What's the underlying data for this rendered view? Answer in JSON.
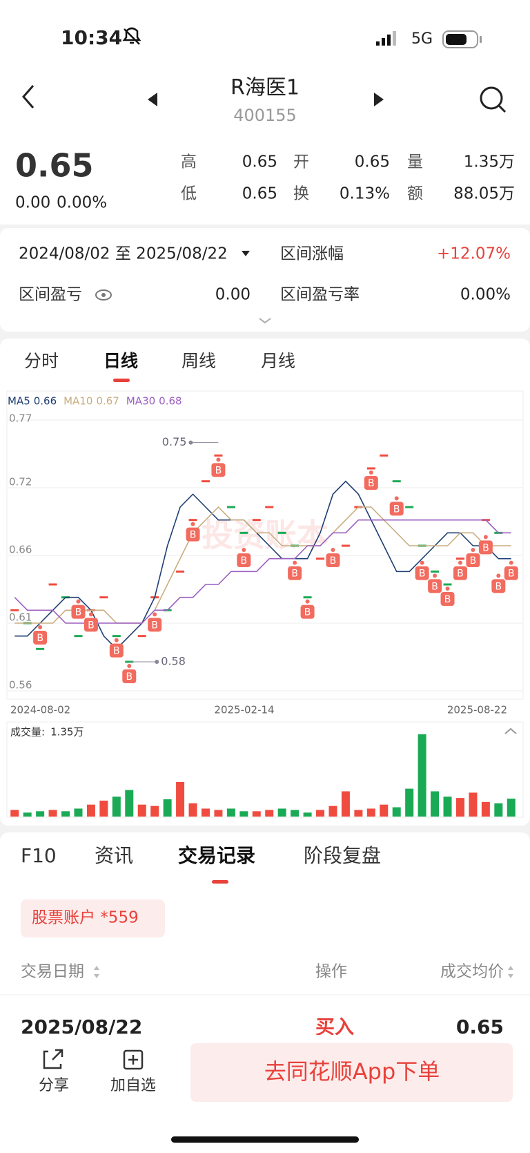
{
  "status": {
    "time": "10:34",
    "network": "5G"
  },
  "header": {
    "name": "R海医1",
    "code": "400155"
  },
  "quote": {
    "price": "0.65",
    "change": "0.00",
    "change_pct": "0.00%",
    "fields": [
      {
        "label": "高",
        "value": "0.65"
      },
      {
        "label": "开",
        "value": "0.65"
      },
      {
        "label": "量",
        "value": "1.35万"
      },
      {
        "label": "低",
        "value": "0.65"
      },
      {
        "label": "换",
        "value": "0.13%"
      },
      {
        "label": "额",
        "value": "88.05万"
      }
    ]
  },
  "range": {
    "period": "2024/08/02 至 2025/08/22",
    "items": [
      {
        "label": "区间涨幅",
        "value": "+12.07%"
      },
      {
        "label": "区间盈亏",
        "value": "0.00"
      },
      {
        "label": "区间盈亏率",
        "value": "0.00%"
      }
    ]
  },
  "period_tabs": [
    "分时",
    "日线",
    "周线",
    "月线"
  ],
  "chart_data": {
    "type": "candlestick",
    "watermark": "投资账本",
    "ylim": [
      0.5575,
      0.7675
    ],
    "yticks": [
      {
        "value": 0.7675,
        "label": "0.77"
      },
      {
        "value": 0.715,
        "label": "0.72"
      },
      {
        "value": 0.6625,
        "label": "0.66"
      },
      {
        "value": 0.61,
        "label": "0.61"
      },
      {
        "value": 0.5575,
        "label": "0.56"
      }
    ],
    "x_labels": [
      "2024-08-02",
      "2025-02-14",
      "2025-08-22"
    ],
    "up_color": "#f04b3f",
    "down_color": "#1aaa55",
    "closes": [
      0.62,
      0.61,
      0.59,
      0.64,
      0.63,
      0.6,
      0.62,
      0.63,
      0.6,
      0.58,
      0.6,
      0.63,
      0.62,
      0.65,
      0.69,
      0.72,
      0.74,
      0.7,
      0.68,
      0.69,
      0.7,
      0.68,
      0.67,
      0.63,
      0.66,
      0.66,
      0.67,
      0.7,
      0.73,
      0.74,
      0.72,
      0.7,
      0.67,
      0.65,
      0.64,
      0.66,
      0.66,
      0.69,
      0.68,
      0.65
    ],
    "buys": [
      null,
      null,
      0.61,
      null,
      null,
      0.63,
      0.62,
      null,
      0.6,
      0.58,
      null,
      0.62,
      null,
      null,
      0.69,
      null,
      0.74,
      null,
      0.67,
      null,
      null,
      null,
      0.66,
      0.63,
      null,
      0.67,
      null,
      null,
      0.73,
      null,
      0.71,
      null,
      0.66,
      0.65,
      0.64,
      0.66,
      0.67,
      0.68,
      0.65,
      0.66
    ],
    "high_low": {
      "high": 0.75,
      "low": 0.58
    },
    "series": [
      {
        "name": "MA5",
        "latest": 0.66,
        "color": "#1f3f73",
        "values": [
          0.6,
          0.6,
          0.61,
          0.62,
          0.63,
          0.63,
          0.62,
          0.6,
          0.59,
          0.6,
          0.61,
          0.63,
          0.67,
          0.7,
          0.71,
          0.7,
          0.69,
          0.69,
          0.69,
          0.68,
          0.67,
          0.66,
          0.66,
          0.66,
          0.68,
          0.71,
          0.72,
          0.71,
          0.69,
          0.67,
          0.65,
          0.65,
          0.66,
          0.67,
          0.68,
          0.68,
          0.67,
          0.67,
          0.66,
          0.66
        ]
      },
      {
        "name": "MA10",
        "latest": 0.67,
        "color": "#c9ad80",
        "values": [
          0.61,
          0.61,
          0.61,
          0.61,
          0.62,
          0.62,
          0.62,
          0.62,
          0.61,
          0.61,
          0.61,
          0.62,
          0.64,
          0.66,
          0.68,
          0.69,
          0.7,
          0.69,
          0.69,
          0.68,
          0.68,
          0.67,
          0.67,
          0.67,
          0.67,
          0.68,
          0.69,
          0.7,
          0.7,
          0.69,
          0.68,
          0.67,
          0.67,
          0.67,
          0.67,
          0.68,
          0.68,
          0.67,
          0.67,
          0.67
        ]
      },
      {
        "name": "MA30",
        "latest": 0.68,
        "color": "#9b5fc0",
        "values": [
          0.63,
          0.62,
          0.62,
          0.62,
          0.61,
          0.61,
          0.61,
          0.61,
          0.61,
          0.61,
          0.61,
          0.62,
          0.62,
          0.63,
          0.63,
          0.64,
          0.64,
          0.65,
          0.65,
          0.65,
          0.66,
          0.66,
          0.66,
          0.67,
          0.67,
          0.68,
          0.68,
          0.69,
          0.69,
          0.69,
          0.69,
          0.69,
          0.69,
          0.69,
          0.69,
          0.69,
          0.69,
          0.69,
          0.68,
          0.68
        ]
      }
    ],
    "volume": {
      "label": "成交量:",
      "latest": "1.35万",
      "ylim": [
        0,
        6.5
      ],
      "values": [
        0.5,
        0.3,
        0.4,
        0.5,
        0.4,
        0.6,
        0.9,
        1.2,
        1.5,
        2.0,
        0.9,
        0.8,
        1.3,
        2.6,
        1.0,
        0.6,
        0.5,
        0.6,
        0.4,
        0.4,
        0.5,
        0.6,
        0.5,
        0.3,
        0.5,
        0.8,
        1.9,
        0.5,
        0.6,
        0.9,
        0.7,
        2.1,
        6.2,
        1.9,
        1.5,
        1.4,
        1.8,
        1.1,
        1.0,
        1.35
      ]
    }
  },
  "detail_tabs": [
    "F10",
    "资讯",
    "交易记录",
    "阶段复盘"
  ],
  "account": "股票账户  *559",
  "table": {
    "columns": [
      "交易日期",
      "操作",
      "成交均价"
    ],
    "rows": [
      [
        "2025/08/22",
        "买入",
        "0.65"
      ]
    ]
  },
  "footer": {
    "actions": [
      "分享",
      "加自选"
    ],
    "order_button": "去同花顺App下单"
  }
}
